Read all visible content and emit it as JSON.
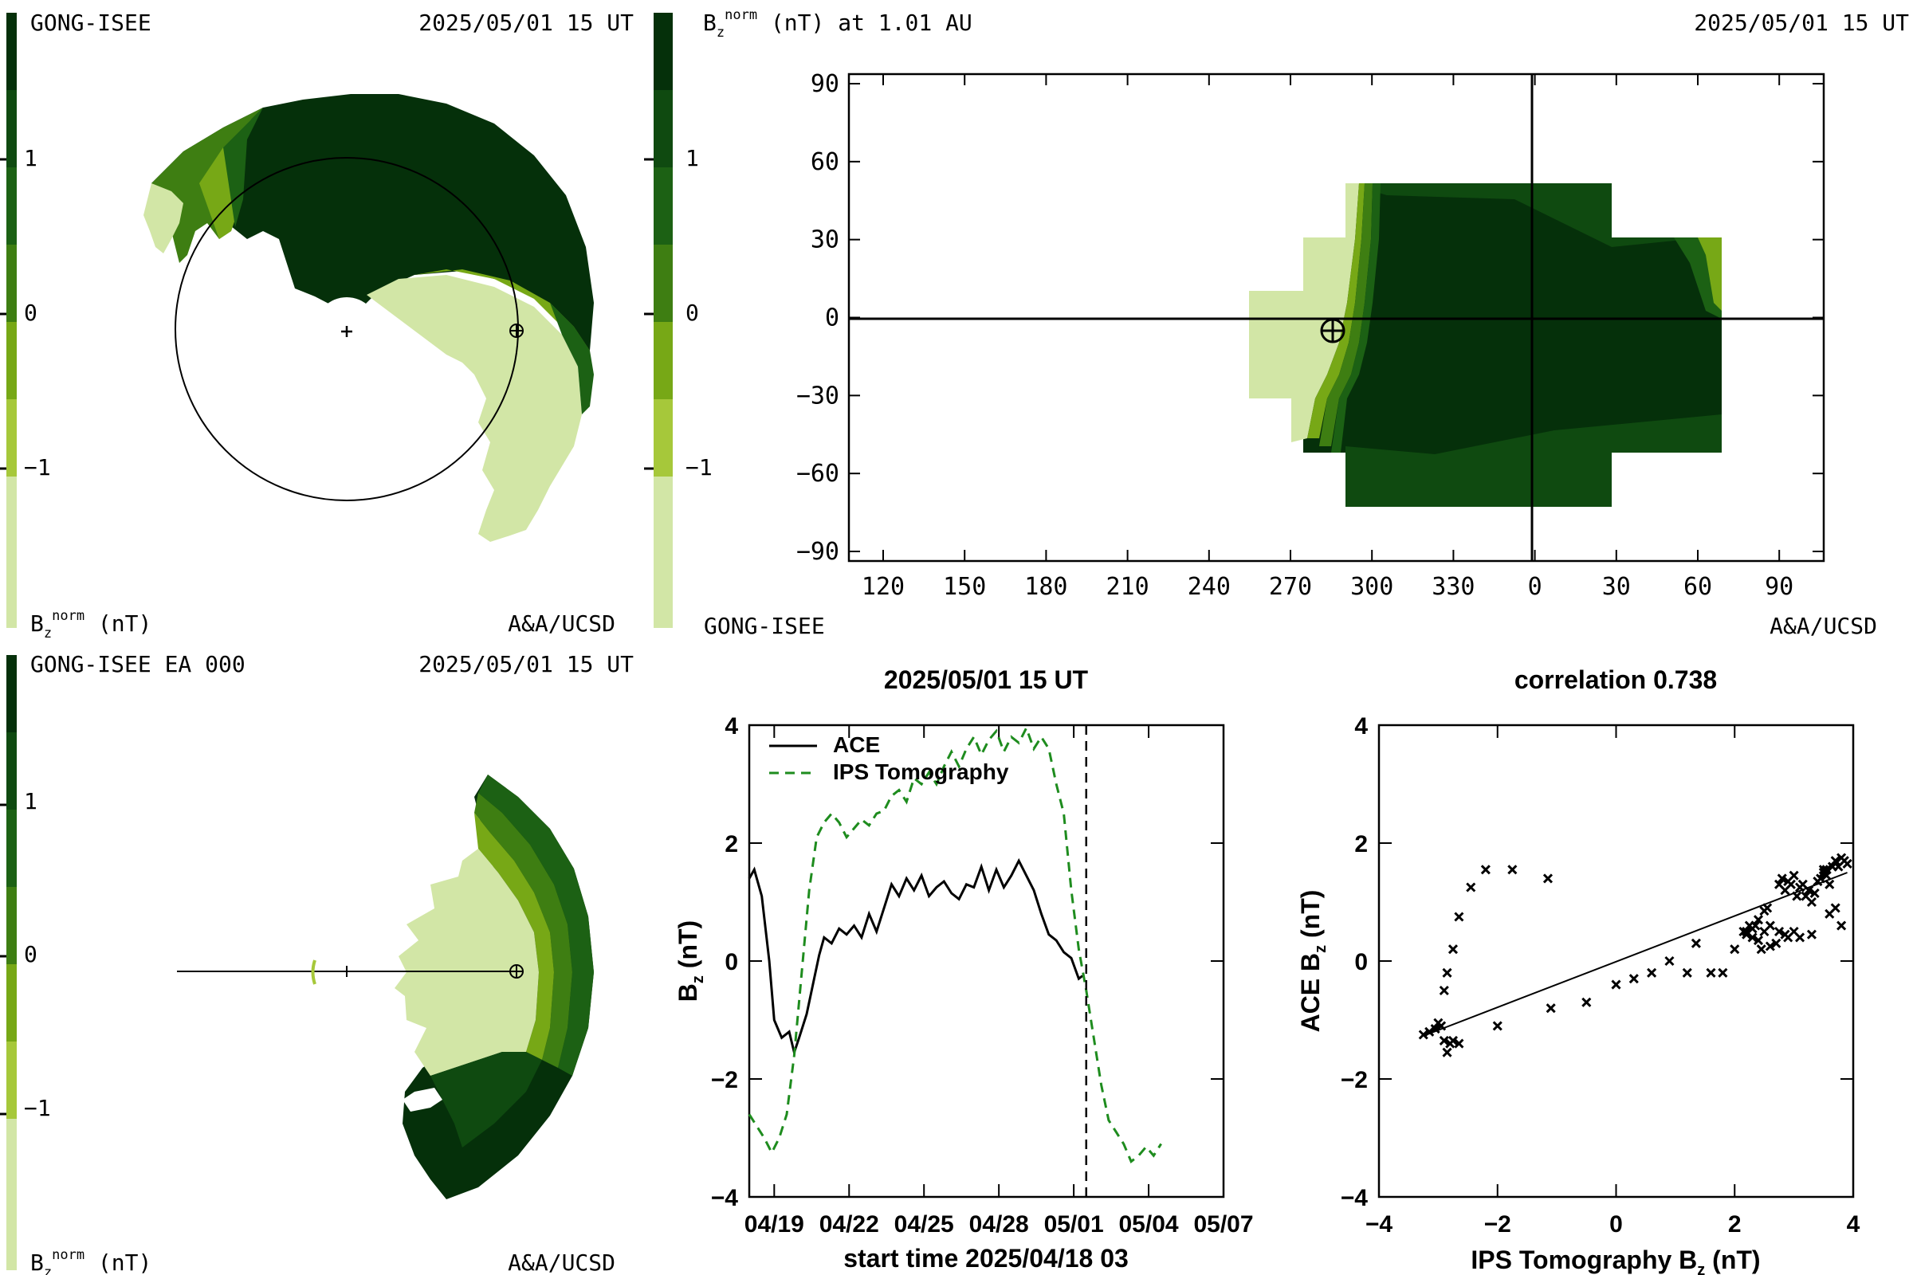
{
  "colors": {
    "scale": [
      "#d2e6a6",
      "#a6c83a",
      "#77a816",
      "#3e7e12",
      "#1c6114",
      "#0f4a10",
      "#05300a"
    ],
    "panel_bg": "#ffffff",
    "ace_line": "#000000",
    "ips_line": "#1e8c1e"
  },
  "colorbar": {
    "ticks": [
      "1",
      "0",
      "−1"
    ],
    "unit_label": "B",
    "unit_sub": "z",
    "unit_sup": "norm",
    "unit_rest": " (nT)"
  },
  "panel_top_left": {
    "source_label": "GONG-ISEE",
    "date_label": "2025/05/01 15 UT",
    "credit_label": "A&A/UCSD",
    "center_icon": "plus-icon",
    "earth_icon": "earth-symbol-icon"
  },
  "panel_bottom_left": {
    "source_label": "GONG-ISEE EA 000",
    "date_label": "2025/05/01 15 UT",
    "credit_label": "A&A/UCSD",
    "earth_icon": "earth-symbol-icon"
  },
  "panel_top_right": {
    "title_prefix": "B",
    "title_sub": "z",
    "title_sup": "norm",
    "title_rest": " (nT) at 1.01 AU",
    "date_label": "2025/05/01 15 UT",
    "source_label": "GONG-ISEE",
    "credit_label": "A&A/UCSD",
    "y_ticks": [
      "90",
      "60",
      "30",
      "0",
      "−30",
      "−60",
      "−90"
    ],
    "x_ticks": [
      "120",
      "150",
      "180",
      "210",
      "240",
      "270",
      "300",
      "330",
      "0",
      "30",
      "60",
      "90"
    ],
    "earth_icon": "earth-symbol-icon"
  },
  "chart_data": [
    {
      "type": "line",
      "title": "2025/05/01 15 UT",
      "xlabel": "start time 2025/04/18 03",
      "ylabel": "B_z (nT)",
      "ylim": [
        -4,
        4
      ],
      "xlim": [
        0,
        19
      ],
      "x_tick_labels": [
        "04/19",
        "04/22",
        "04/25",
        "04/28",
        "05/01",
        "05/04",
        "05/07"
      ],
      "y_tick_labels": [
        "4",
        "2",
        "0",
        "−2",
        "−4"
      ],
      "current_time_day": 13.5,
      "legend_position": "top-left",
      "series": [
        {
          "name": "ACE",
          "style": "solid",
          "x": [
            0,
            0.2,
            0.5,
            0.8,
            1.0,
            1.3,
            1.6,
            1.8,
            2.0,
            2.3,
            2.6,
            2.8,
            3.0,
            3.3,
            3.6,
            3.9,
            4.2,
            4.5,
            4.8,
            5.1,
            5.4,
            5.7,
            6.0,
            6.3,
            6.6,
            6.9,
            7.2,
            7.5,
            7.8,
            8.1,
            8.4,
            8.7,
            9.0,
            9.3,
            9.6,
            9.9,
            10.2,
            10.5,
            10.8,
            11.1,
            11.4,
            11.7,
            12.0,
            12.3,
            12.6,
            12.9,
            13.2,
            13.35
          ],
          "y": [
            1.4,
            1.55,
            1.1,
            0.0,
            -1.0,
            -1.3,
            -1.2,
            -1.55,
            -1.3,
            -0.9,
            -0.3,
            0.1,
            0.4,
            0.3,
            0.55,
            0.45,
            0.6,
            0.4,
            0.8,
            0.5,
            0.9,
            1.3,
            1.1,
            1.4,
            1.2,
            1.45,
            1.1,
            1.25,
            1.35,
            1.15,
            1.05,
            1.3,
            1.25,
            1.6,
            1.2,
            1.55,
            1.25,
            1.45,
            1.7,
            1.45,
            1.2,
            0.8,
            0.45,
            0.35,
            0.15,
            0.05,
            -0.3,
            -0.25
          ]
        },
        {
          "name": "IPS Tomography",
          "style": "dashed",
          "x": [
            0,
            0.3,
            0.6,
            0.9,
            1.2,
            1.5,
            1.8,
            2.1,
            2.4,
            2.7,
            3.0,
            3.3,
            3.6,
            3.9,
            4.2,
            4.5,
            4.8,
            5.1,
            5.4,
            5.7,
            6.0,
            6.3,
            6.6,
            6.9,
            7.2,
            7.5,
            7.8,
            8.1,
            8.4,
            8.7,
            9.0,
            9.3,
            9.6,
            9.9,
            10.2,
            10.5,
            10.8,
            11.1,
            11.4,
            11.7,
            12.0,
            12.3,
            12.6,
            12.9,
            13.2,
            13.5,
            13.8,
            14.1,
            14.4,
            14.7,
            15.0,
            15.3,
            15.6,
            15.9,
            16.2,
            16.5
          ],
          "y": [
            -2.6,
            -2.8,
            -3.0,
            -3.25,
            -3.0,
            -2.6,
            -1.6,
            -0.2,
            1.2,
            2.1,
            2.35,
            2.5,
            2.35,
            2.1,
            2.25,
            2.4,
            2.3,
            2.5,
            2.55,
            2.8,
            2.9,
            2.7,
            3.1,
            3.0,
            3.2,
            3.0,
            3.3,
            3.55,
            3.3,
            3.6,
            3.8,
            3.5,
            3.75,
            3.9,
            3.55,
            3.8,
            3.7,
            3.95,
            3.6,
            3.8,
            3.6,
            3.0,
            2.5,
            1.2,
            0.2,
            -0.5,
            -1.3,
            -2.1,
            -2.7,
            -2.9,
            -3.1,
            -3.4,
            -3.3,
            -3.15,
            -3.3,
            -3.1
          ]
        }
      ]
    },
    {
      "type": "scatter",
      "title": "correlation 0.738",
      "xlabel": "IPS Tomography B_z (nT)",
      "ylabel": "ACE B_z (nT)",
      "xlim": [
        -4,
        4
      ],
      "ylim": [
        -4,
        4
      ],
      "x_tick_labels": [
        "−4",
        "−2",
        "0",
        "2",
        "4"
      ],
      "y_tick_labels": [
        "4",
        "2",
        "0",
        "−2",
        "−4"
      ],
      "fit_line": {
        "x": [
          -3.2,
          3.9
        ],
        "y": [
          -1.25,
          1.5
        ]
      },
      "points": {
        "x": [
          -3.25,
          -3.15,
          -3.05,
          -3.0,
          -2.95,
          -2.9,
          -2.85,
          -2.8,
          -2.75,
          -2.65,
          -2.9,
          -2.85,
          -2.75,
          -2.65,
          -2.45,
          -2.2,
          -1.75,
          -1.15,
          -2.0,
          -1.1,
          -0.5,
          0.0,
          0.3,
          0.6,
          0.9,
          1.2,
          1.35,
          1.6,
          1.8,
          2.0,
          2.15,
          2.2,
          2.25,
          2.3,
          2.35,
          2.4,
          2.5,
          2.55,
          2.2,
          2.3,
          2.4,
          2.5,
          2.6,
          2.75,
          2.8,
          2.85,
          2.9,
          2.95,
          3.0,
          3.05,
          3.1,
          3.15,
          3.2,
          3.25,
          3.3,
          3.35,
          3.4,
          3.45,
          3.5,
          3.55,
          3.6,
          3.65,
          3.7,
          3.75,
          3.8,
          3.85,
          3.9,
          2.7,
          3.1,
          3.3,
          3.6,
          3.7,
          3.8,
          2.45,
          2.6,
          2.9,
          3.0,
          2.75,
          2.85,
          3.5,
          3.55
        ],
        "y": [
          -1.25,
          -1.2,
          -1.15,
          -1.05,
          -1.1,
          -1.35,
          -1.55,
          -1.4,
          -1.35,
          -1.4,
          -0.5,
          -0.2,
          0.2,
          0.75,
          1.25,
          1.55,
          1.55,
          1.4,
          -1.1,
          -0.8,
          -0.7,
          -0.4,
          -0.3,
          -0.2,
          0.0,
          -0.2,
          0.3,
          -0.2,
          -0.2,
          0.2,
          0.5,
          0.45,
          0.6,
          0.55,
          0.6,
          0.7,
          0.85,
          0.9,
          0.5,
          0.4,
          0.35,
          0.5,
          0.6,
          1.3,
          1.4,
          1.2,
          1.35,
          1.3,
          1.45,
          1.1,
          1.25,
          1.3,
          1.1,
          1.2,
          1.0,
          1.15,
          1.35,
          1.4,
          1.5,
          1.55,
          1.3,
          1.6,
          1.7,
          1.6,
          1.75,
          1.7,
          1.65,
          0.3,
          0.4,
          0.45,
          0.8,
          0.9,
          0.6,
          0.2,
          0.25,
          0.4,
          0.5,
          0.5,
          0.45,
          1.55,
          1.45
        ]
      }
    }
  ]
}
